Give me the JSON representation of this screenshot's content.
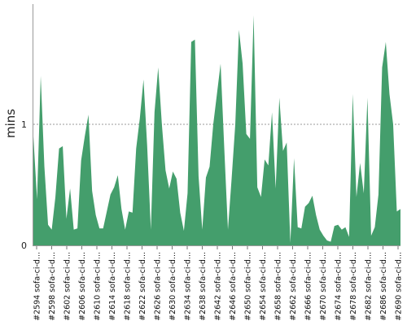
{
  "chart_data": {
    "type": "area",
    "ylabel": "mins",
    "ylim": [
      0,
      2.0
    ],
    "yticks": [
      0,
      1
    ],
    "grid": {
      "y_at": [
        1
      ]
    },
    "colors": {
      "area": "#449e6c",
      "grid": "#777777",
      "axis": "#9a9a9a"
    },
    "x_tick_labels": [
      "#2594 sofa-ci-d...",
      "#2598 sofa-ci-d...",
      "#2602 sofa-ci-d...",
      "#2606 sofa-ci-d...",
      "#2610 sofa-ci-d...",
      "#2614 sofa-ci-d...",
      "#2618 sofa-ci-d...",
      "#2622 sofa-ci-d...",
      "#2626 sofa-ci-d...",
      "#2630 sofa-ci-d...",
      "#2634 sofa-ci-d...",
      "#2638 sofa-ci-d...",
      "#2642 sofa-ci-d...",
      "#2646 sofa-ci-d...",
      "#2650 sofa-ci-d...",
      "#2654 sofa-ci-d...",
      "#2658 sofa-ci-d...",
      "#2662 sofa-ci-d...",
      "#2666 sofa-ci-d...",
      "#2670 sofa-ci-d...",
      "#2674 sofa-ci-d...",
      "#2678 sofa-ci-d...",
      "#2682 sofa-ci-d...",
      "#2686 sofa-ci-d...",
      "#2690 sofa-ci-d..."
    ],
    "values": [
      0.9,
      0.38,
      1.4,
      0.65,
      0.17,
      0.13,
      0.4,
      0.8,
      0.82,
      0.22,
      0.47,
      0.13,
      0.14,
      0.7,
      0.9,
      1.08,
      0.45,
      0.25,
      0.14,
      0.14,
      0.28,
      0.42,
      0.48,
      0.58,
      0.3,
      0.13,
      0.28,
      0.27,
      0.8,
      1.05,
      1.37,
      0.82,
      0.13,
      1.1,
      1.47,
      1.0,
      0.62,
      0.47,
      0.61,
      0.55,
      0.27,
      0.12,
      0.43,
      1.68,
      1.7,
      0.57,
      0.13,
      0.56,
      0.65,
      1.0,
      1.25,
      1.5,
      0.8,
      0.13,
      0.55,
      1.0,
      1.78,
      1.5,
      0.92,
      0.88,
      1.9,
      0.48,
      0.4,
      0.71,
      0.66,
      1.1,
      0.47,
      1.22,
      0.78,
      0.85,
      0.02,
      0.72,
      0.15,
      0.14,
      0.32,
      0.35,
      0.41,
      0.25,
      0.13,
      0.08,
      0.04,
      0.03,
      0.16,
      0.17,
      0.13,
      0.15,
      0.07,
      1.25,
      0.4,
      0.68,
      0.43,
      1.22,
      0.08,
      0.15,
      0.42,
      1.47,
      1.68,
      1.25,
      1.0,
      0.28,
      0.3
    ]
  }
}
